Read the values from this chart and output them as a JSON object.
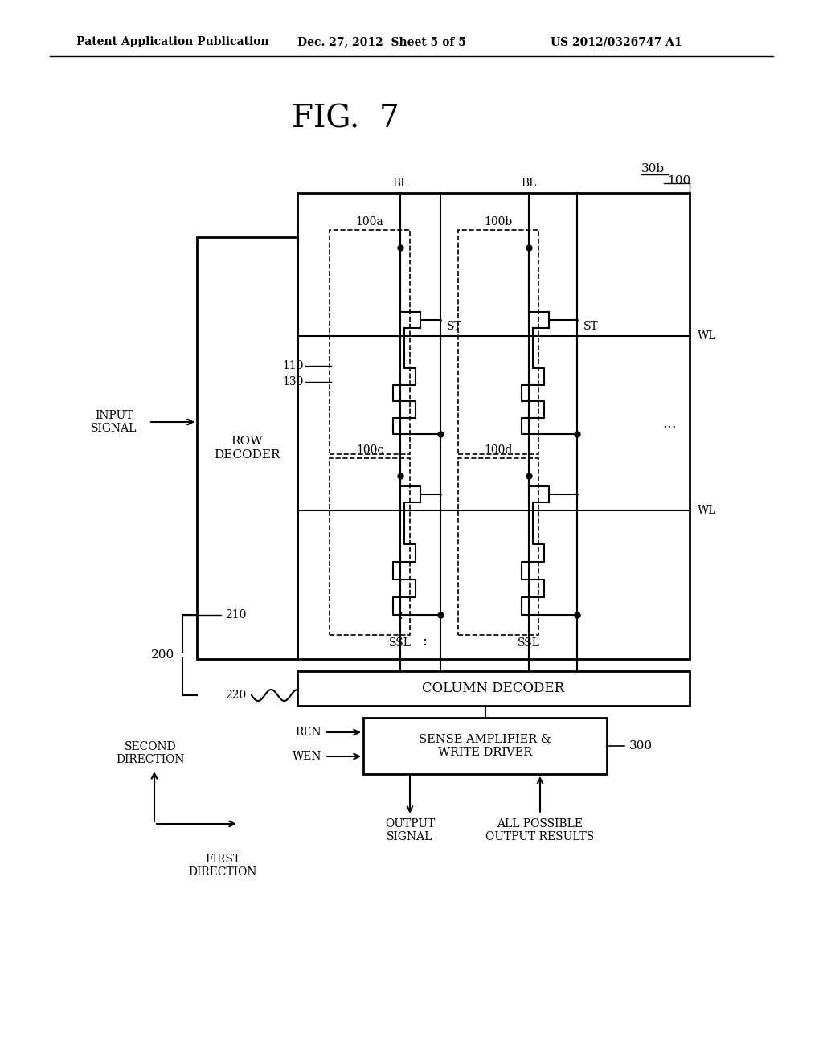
{
  "title": "FIG.  7",
  "header_left": "Patent Application Publication",
  "header_mid": "Dec. 27, 2012  Sheet 5 of 5",
  "header_right": "US 2012/0326747 A1",
  "bg_color": "#ffffff",
  "line_color": "#000000",
  "label_30b": "30b",
  "label_100": "100",
  "label_100a": "100a",
  "label_100b": "100b",
  "label_100c": "100c",
  "label_100d": "100d",
  "label_110": "110",
  "label_130": "130",
  "label_200": "200",
  "label_210": "210",
  "label_220": "220",
  "label_300": "300",
  "label_BL1": "BL",
  "label_BL2": "BL",
  "label_WL1": "WL",
  "label_WL2": "WL",
  "label_ST1": "ST",
  "label_ST2": "ST",
  "label_SSL1": "SSL",
  "label_SSL2": "SSL",
  "label_row_decoder": "ROW\nDECODER",
  "label_col_decoder": "COLUMN DECODER",
  "label_sense_amp": "SENSE AMPLIFIER &\nWRITE DRIVER",
  "label_input": "INPUT\nSIGNAL",
  "label_ren": "REN",
  "label_wen": "WEN",
  "label_output": "OUTPUT\nSIGNAL",
  "label_all_possible": "ALL POSSIBLE\nOUTPUT RESULTS",
  "label_second_dir": "SECOND\nDIRECTION",
  "label_first_dir": "FIRST\nDIRECTION"
}
